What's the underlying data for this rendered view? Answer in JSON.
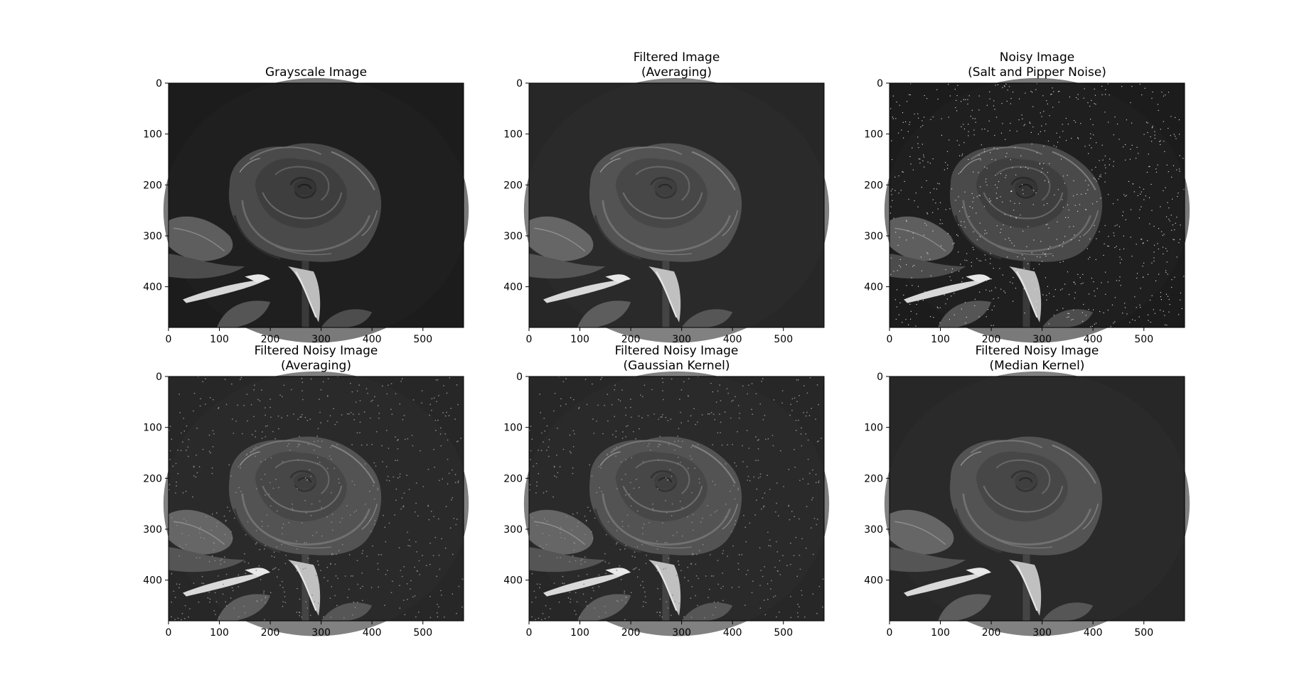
{
  "chart_data": [
    {
      "type": "image",
      "title_lines": [
        "Grayscale Image"
      ],
      "xlim": [
        0,
        580
      ],
      "ylim": [
        480,
        0
      ],
      "xticks": [
        0,
        100,
        200,
        300,
        400,
        500
      ],
      "yticks": [
        0,
        100,
        200,
        300,
        400
      ],
      "noise": "none"
    },
    {
      "type": "image",
      "title_lines": [
        "Filtered Image",
        "(Averaging)"
      ],
      "xlim": [
        0,
        580
      ],
      "ylim": [
        480,
        0
      ],
      "xticks": [
        0,
        100,
        200,
        300,
        400,
        500
      ],
      "yticks": [
        0,
        100,
        200,
        300,
        400
      ],
      "noise": "none"
    },
    {
      "type": "image",
      "title_lines": [
        "Noisy Image",
        "(Salt and Pipper Noise)"
      ],
      "xlim": [
        0,
        580
      ],
      "ylim": [
        480,
        0
      ],
      "xticks": [
        0,
        100,
        200,
        300,
        400,
        500
      ],
      "yticks": [
        0,
        100,
        200,
        300,
        400
      ],
      "noise": "salt-and-pepper"
    },
    {
      "type": "image",
      "title_lines": [
        "Filtered Noisy Image",
        "(Averaging)"
      ],
      "xlim": [
        0,
        580
      ],
      "ylim": [
        480,
        0
      ],
      "xticks": [
        0,
        100,
        200,
        300,
        400,
        500
      ],
      "yticks": [
        0,
        100,
        200,
        300,
        400
      ],
      "noise": "faint-specks"
    },
    {
      "type": "image",
      "title_lines": [
        "Filtered Noisy Image",
        "(Gaussian Kernel)"
      ],
      "xlim": [
        0,
        580
      ],
      "ylim": [
        480,
        0
      ],
      "xticks": [
        0,
        100,
        200,
        300,
        400,
        500
      ],
      "yticks": [
        0,
        100,
        200,
        300,
        400
      ],
      "noise": "faint-specks"
    },
    {
      "type": "image",
      "title_lines": [
        "Filtered Noisy Image",
        "(Median Kernel)"
      ],
      "xlim": [
        0,
        580
      ],
      "ylim": [
        480,
        0
      ],
      "xticks": [
        0,
        100,
        200,
        300,
        400,
        500
      ],
      "yticks": [
        0,
        100,
        200,
        300,
        400
      ],
      "noise": "none"
    }
  ]
}
